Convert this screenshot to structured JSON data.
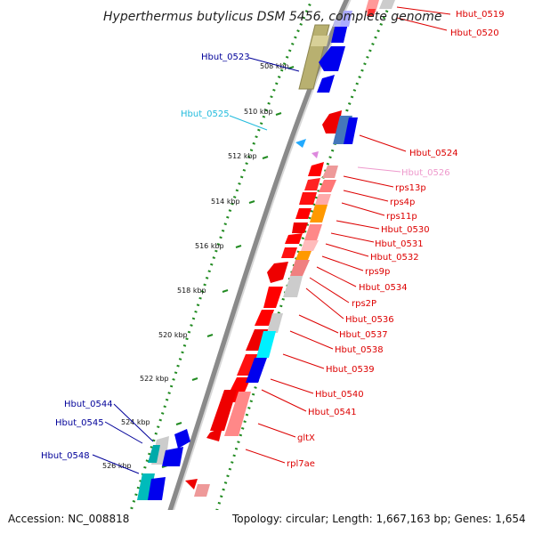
{
  "title": "Hyperthermus butylicus DSM 5456, complete genome",
  "footer": {
    "accession": "Accession: NC_008818",
    "summary": "Topology: circular; Length: 1,667,163 bp; Genes: 1,654"
  },
  "colors": {
    "backbone": "#888888",
    "tick": "#228b22",
    "red": "#ff0000",
    "blue": "#0000ff",
    "cyan": "#00ffff",
    "olive": "#b0a860",
    "pink": "#f08080",
    "orange": "#ff9900"
  },
  "kbp_ticks": [
    "508 kbp",
    "510 kbp",
    "512 kbp",
    "514 kbp",
    "516 kbp",
    "518 kbp",
    "520 kbp",
    "522 kbp",
    "524 kbp",
    "526 kbp"
  ],
  "labels": [
    {
      "text": "Hbut_0519",
      "color": "#dd0000"
    },
    {
      "text": "Hbut_0520",
      "color": "#dd0000"
    },
    {
      "text": "Hbut_0523",
      "color": "#000099"
    },
    {
      "text": "Hbut_0525",
      "color": "#22bbdd"
    },
    {
      "text": "Hbut_0524",
      "color": "#dd0000"
    },
    {
      "text": "Hbut_0526",
      "color": "#ee99cc"
    },
    {
      "text": "rps13p",
      "color": "#dd0000"
    },
    {
      "text": "rps4p",
      "color": "#dd0000"
    },
    {
      "text": "rps11p",
      "color": "#dd0000"
    },
    {
      "text": "Hbut_0530",
      "color": "#dd0000"
    },
    {
      "text": "Hbut_0531",
      "color": "#dd0000"
    },
    {
      "text": "Hbut_0532",
      "color": "#dd0000"
    },
    {
      "text": "rps9p",
      "color": "#dd0000"
    },
    {
      "text": "Hbut_0534",
      "color": "#dd0000"
    },
    {
      "text": "rps2P",
      "color": "#dd0000"
    },
    {
      "text": "Hbut_0536",
      "color": "#dd0000"
    },
    {
      "text": "Hbut_0537",
      "color": "#dd0000"
    },
    {
      "text": "Hbut_0538",
      "color": "#dd0000"
    },
    {
      "text": "Hbut_0539",
      "color": "#dd0000"
    },
    {
      "text": "Hbut_0540",
      "color": "#dd0000"
    },
    {
      "text": "Hbut_0541",
      "color": "#dd0000"
    },
    {
      "text": "gltX",
      "color": "#dd0000"
    },
    {
      "text": "rpl7ae",
      "color": "#dd0000"
    },
    {
      "text": "Hbut_0544",
      "color": "#000099"
    },
    {
      "text": "Hbut_0545",
      "color": "#000099"
    },
    {
      "text": "Hbut_0548",
      "color": "#000099"
    }
  ]
}
